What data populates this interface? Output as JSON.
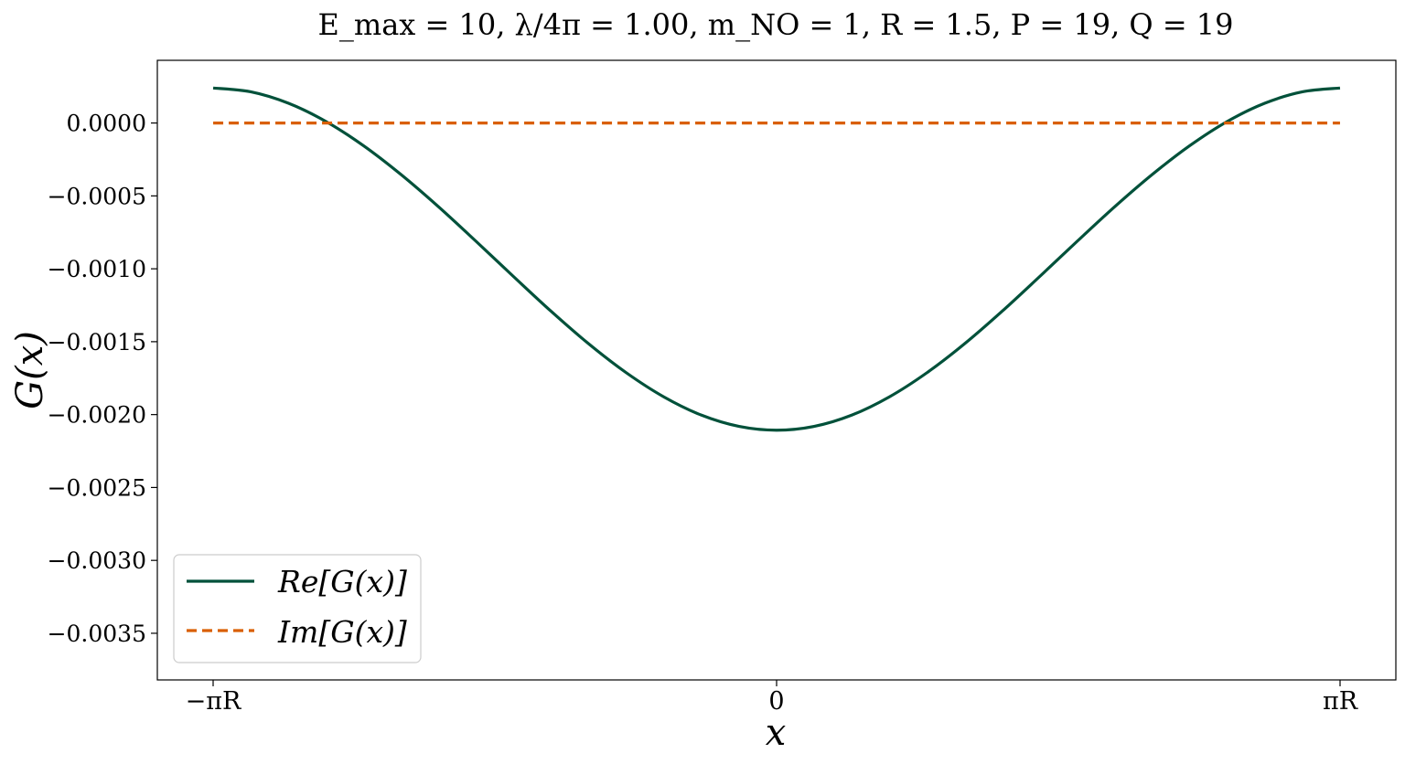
{
  "chart_data": {
    "type": "line",
    "title": "E_max = 10,   λ/4π = 1.00,   m_NO = 1,   R = 1.5,   P = 19,   Q = 19",
    "xlabel": "x",
    "ylabel": "G(x)",
    "x_range": [
      -4.712389,
      4.712389
    ],
    "ylim": [
      -0.00382,
      0.00043
    ],
    "x_ticks": [
      {
        "value": -4.712389,
        "label": "−πR"
      },
      {
        "value": 0,
        "label": "0"
      },
      {
        "value": 4.712389,
        "label": "πR"
      }
    ],
    "y_ticks": [
      {
        "value": 0.0,
        "label": "0.0000"
      },
      {
        "value": -0.0005,
        "label": "−0.0005"
      },
      {
        "value": -0.001,
        "label": "−0.0010"
      },
      {
        "value": -0.0015,
        "label": "−0.0015"
      },
      {
        "value": -0.002,
        "label": "−0.0020"
      },
      {
        "value": -0.0025,
        "label": "−0.0025"
      },
      {
        "value": -0.003,
        "label": "−0.0030"
      },
      {
        "value": -0.0035,
        "label": "−0.0035"
      }
    ],
    "grid": false,
    "legend_position": "bottom-left",
    "series": [
      {
        "name": "Re[G(x)]",
        "color": "#00513a",
        "style": "solid",
        "x": [
          -4.712,
          -4.398,
          -4.084,
          -3.77,
          -3.456,
          -3.142,
          -2.827,
          -2.513,
          -2.199,
          -1.885,
          -1.571,
          -1.257,
          -0.942,
          -0.628,
          -0.314,
          0.0,
          0.314,
          0.628,
          0.942,
          1.257,
          1.571,
          1.885,
          2.199,
          2.513,
          2.827,
          3.142,
          3.456,
          3.77,
          4.084,
          4.398,
          4.712
        ],
        "y": [
          0.00024,
          0.000214,
          0.000136,
          1.1e-05,
          -0.000155,
          -0.000353,
          -0.000575,
          -0.000812,
          -0.001054,
          -0.001292,
          -0.001515,
          -0.001713,
          -0.001879,
          -0.002004,
          -0.002081,
          -0.002107,
          -0.002081,
          -0.002004,
          -0.001879,
          -0.001713,
          -0.001515,
          -0.001292,
          -0.001054,
          -0.000812,
          -0.000575,
          -0.000353,
          -0.000155,
          1.1e-05,
          0.000136,
          0.000214,
          0.00024
        ]
      },
      {
        "name": "Im[G(x)]",
        "color": "#d95f02",
        "style": "dashed",
        "x": [
          -4.712,
          4.712
        ],
        "y": [
          0.0,
          0.0
        ]
      }
    ]
  }
}
